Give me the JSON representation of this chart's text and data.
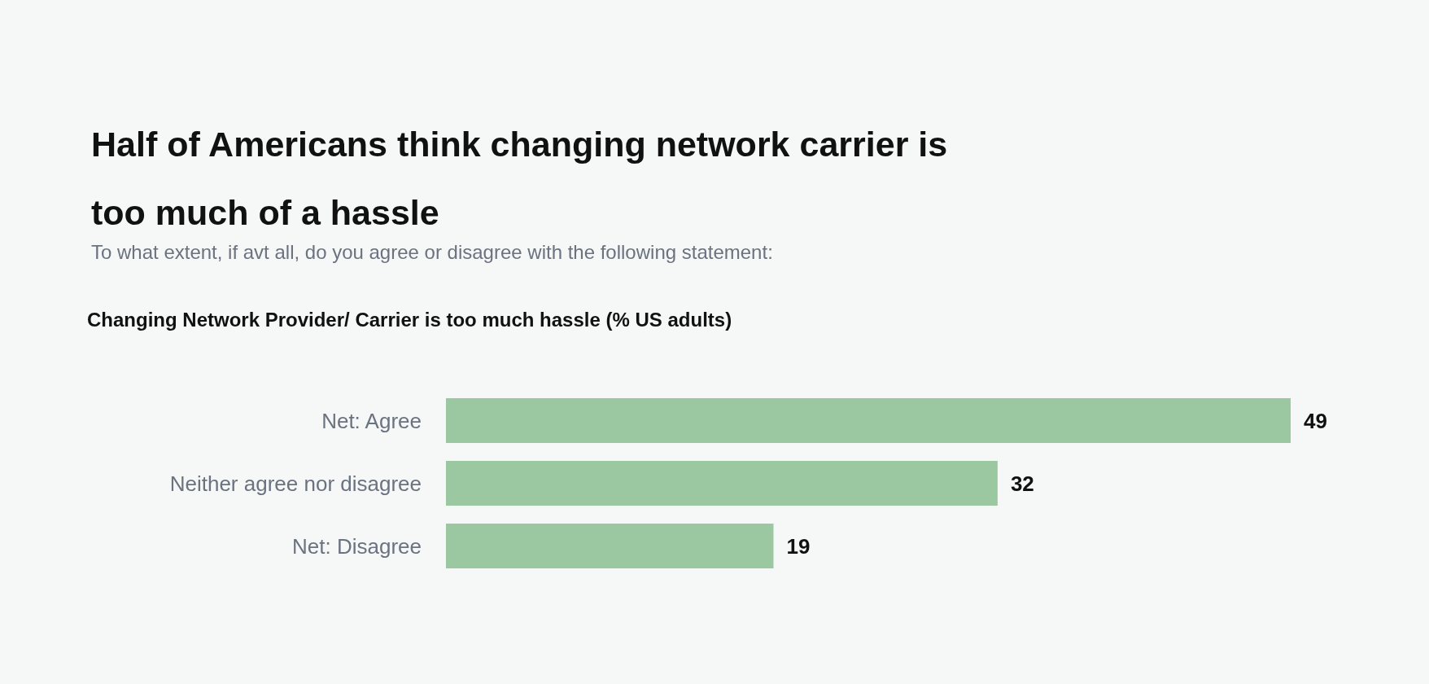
{
  "chart_data": {
    "type": "bar",
    "orientation": "horizontal",
    "title": "Half of Americans think changing network carrier is too much of a hassle",
    "subtitle": "To what extent, if avt all, do you agree or disagree with the following statement:",
    "annotations": [
      "Changing Network Provider/ Carrier is too much hassle (% US adults)"
    ],
    "categories": [
      "Net: Agree",
      "Neither agree nor disagree",
      "Net: Disagree"
    ],
    "values": [
      49,
      32,
      19
    ],
    "color": "#9bc8a0",
    "data_labels": true
  }
}
